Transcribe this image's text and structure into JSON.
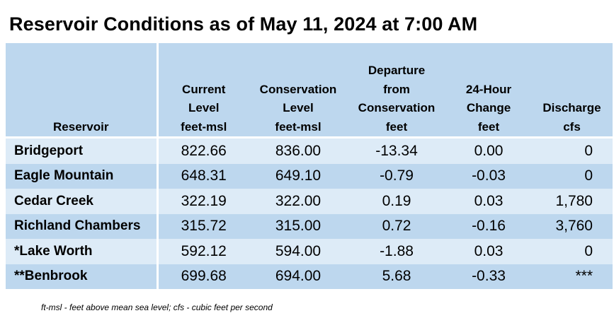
{
  "title": "Reservoir Conditions as of May 11, 2024 at 7:00 AM",
  "columns": [
    {
      "lines": [
        "Reservoir"
      ]
    },
    {
      "lines": [
        "Current",
        "Level",
        "feet-msl"
      ]
    },
    {
      "lines": [
        "Conservation",
        "Level",
        "feet-msl"
      ]
    },
    {
      "lines": [
        "Departure",
        "from",
        "Conservation",
        "feet"
      ]
    },
    {
      "lines": [
        "24-Hour",
        "Change",
        "feet"
      ]
    },
    {
      "lines": [
        "Discharge",
        "cfs"
      ]
    }
  ],
  "rows": [
    {
      "name": "Bridgeport",
      "current": "822.66",
      "conservation": "836.00",
      "departure": "-13.34",
      "change": "0.00",
      "discharge": "0"
    },
    {
      "name": "Eagle Mountain",
      "current": "648.31",
      "conservation": "649.10",
      "departure": "-0.79",
      "change": "-0.03",
      "discharge": "0"
    },
    {
      "name": "Cedar Creek",
      "current": "322.19",
      "conservation": "322.00",
      "departure": "0.19",
      "change": "0.03",
      "discharge": "1,780"
    },
    {
      "name": "Richland Chambers",
      "current": "315.72",
      "conservation": "315.00",
      "departure": "0.72",
      "change": "-0.16",
      "discharge": "3,760"
    },
    {
      "name": "*Lake Worth",
      "current": "592.12",
      "conservation": "594.00",
      "departure": "-1.88",
      "change": "0.03",
      "discharge": "0"
    },
    {
      "name": "**Benbrook",
      "current": "699.68",
      "conservation": "694.00",
      "departure": "5.68",
      "change": "-0.33",
      "discharge": "***"
    }
  ],
  "footnote": "ft-msl - feet above mean sea level; cfs - cubic feet per second",
  "colors": {
    "header": "#bdd7ee",
    "row_light": "#ddebf7",
    "row_dark": "#bdd7ee"
  }
}
